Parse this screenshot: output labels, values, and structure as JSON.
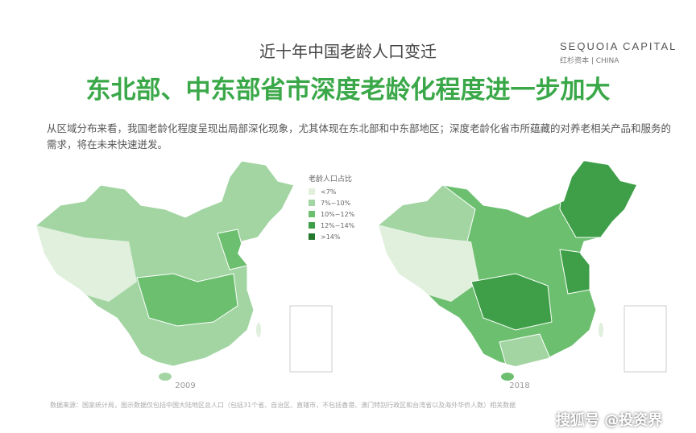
{
  "header": {
    "subtitle": "近十年中国老龄人口变迁",
    "title": "东北部、中东部省市深度老龄化程度进一步加大",
    "logo": "SEQUOIA CAPITAL",
    "logo_sub": "红杉资本 | CHINA"
  },
  "body": {
    "text": "从区域分布来看，我国老龄化程度呈现出局部深化现象，尤其体现在东北部和中东部地区；深度老龄化省市所蕴藏的对养老相关产品和服务的需求，将在未来快速迸发。"
  },
  "legend": {
    "title": "老龄人口占比",
    "items": [
      {
        "label": "<7%",
        "color": "#e0f0dd"
      },
      {
        "label": "7%~10%",
        "color": "#a3d5a3"
      },
      {
        "label": "10%~12%",
        "color": "#6cbf6f"
      },
      {
        "label": "12%~14%",
        "color": "#3e9f48"
      },
      {
        "label": ">14%",
        "color": "#21772c"
      }
    ]
  },
  "maps": [
    {
      "year": "2009"
    },
    {
      "year": "2018"
    }
  ],
  "footer": {
    "source": "数据来源：国家统计局，图示数据仅包括中国大陆地区总人口（包括31个省、自治区、直辖市，不包括香港、澳门特别行政区和台湾省以及海外华侨人数）相关数据",
    "watermark": "搜狐号 @投资界"
  }
}
